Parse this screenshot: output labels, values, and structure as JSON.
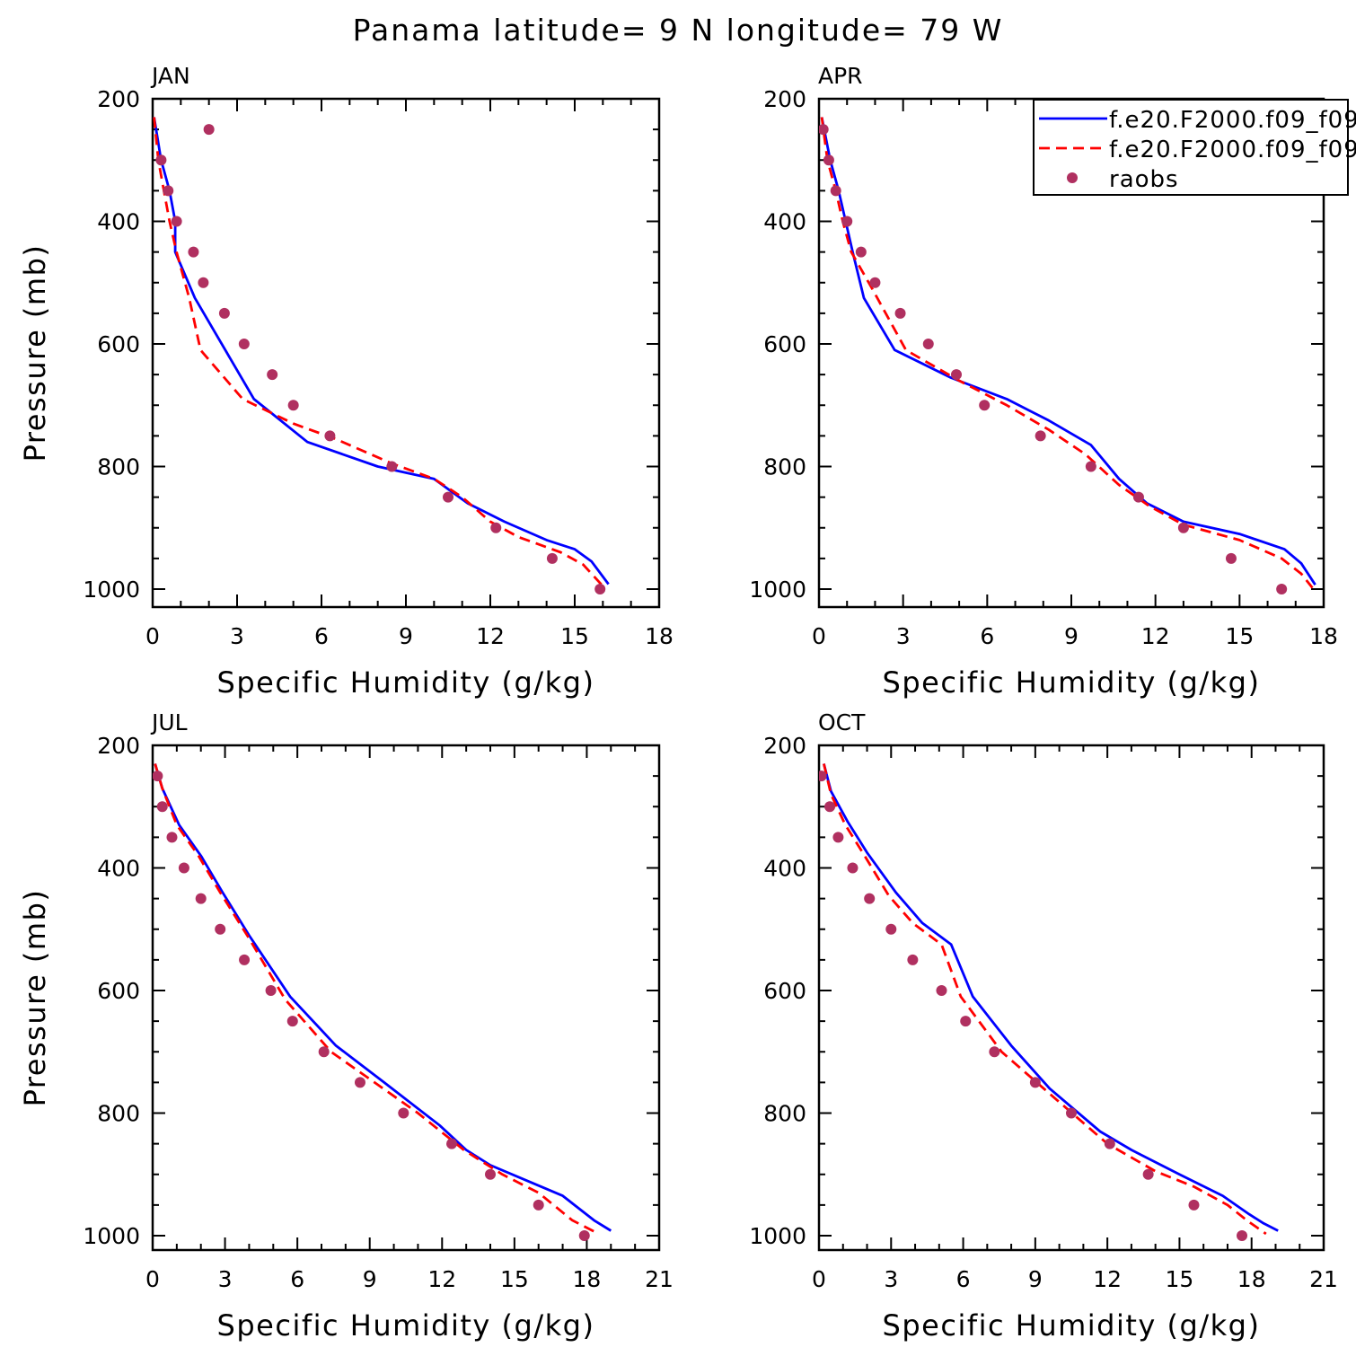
{
  "title": "Panama  latitude= 9 N longitude= 79 W",
  "legend": {
    "placement": "top-right of APR panel",
    "entries": [
      {
        "label": "f.e20.F2000.f09_f09",
        "style": "solid",
        "color": "#0000ff"
      },
      {
        "label": "f.e20.F2000.f09_f09",
        "style": "dashed",
        "color": "#ff0000"
      },
      {
        "label": "raobs",
        "style": "dot",
        "color": "#b03060"
      }
    ]
  },
  "colors": {
    "solid": "#0000ff",
    "dashed": "#ff0000",
    "raobs": "#b03060"
  },
  "chart_data": [
    {
      "type": "line",
      "month": "JAN",
      "xlabel": "Specific Humidity (g/kg)",
      "ylabel": "Pressure (mb)",
      "xlim": [
        0,
        18
      ],
      "ylim": [
        1025,
        200
      ],
      "xticks": [
        0,
        3,
        6,
        9,
        12,
        15,
        18
      ],
      "yticks": [
        200,
        400,
        600,
        800,
        1000
      ],
      "series": [
        {
          "style": "solid",
          "points": [
            [
              0.05,
              230
            ],
            [
              0.3,
              300
            ],
            [
              0.6,
              350
            ],
            [
              0.8,
              400
            ],
            [
              0.8,
              450
            ],
            [
              1.5,
              525
            ],
            [
              3.6,
              690
            ],
            [
              5.5,
              760
            ],
            [
              8,
              800
            ],
            [
              10,
              820
            ],
            [
              11.2,
              860
            ],
            [
              12.5,
              890
            ],
            [
              14,
              920
            ],
            [
              15,
              935
            ],
            [
              15.6,
              955
            ],
            [
              16.2,
              992
            ]
          ]
        },
        {
          "style": "dashed",
          "points": [
            [
              0.05,
              230
            ],
            [
              0.2,
              300
            ],
            [
              0.4,
              350
            ],
            [
              0.6,
              400
            ],
            [
              0.85,
              450
            ],
            [
              1.3,
              525
            ],
            [
              1.7,
              610
            ],
            [
              3.2,
              690
            ],
            [
              5,
              730
            ],
            [
              6.5,
              755
            ],
            [
              8.5,
              795
            ],
            [
              10,
              820
            ],
            [
              11,
              850
            ],
            [
              12,
              890
            ],
            [
              13,
              915
            ],
            [
              14.5,
              940
            ],
            [
              15.3,
              960
            ],
            [
              16,
              995
            ]
          ]
        },
        {
          "style": "dots",
          "points": [
            [
              2,
              250
            ],
            [
              0.3,
              300
            ],
            [
              0.55,
              350
            ],
            [
              0.85,
              400
            ],
            [
              1.45,
              450
            ],
            [
              1.8,
              500
            ],
            [
              2.55,
              550
            ],
            [
              3.25,
              600
            ],
            [
              4.25,
              650
            ],
            [
              5,
              700
            ],
            [
              6.3,
              750
            ],
            [
              8.5,
              800
            ],
            [
              10.5,
              850
            ],
            [
              12.2,
              900
            ],
            [
              14.2,
              950
            ],
            [
              15.9,
              1000
            ]
          ]
        }
      ]
    },
    {
      "type": "line",
      "month": "APR",
      "xlabel": "Specific Humidity (g/kg)",
      "ylabel": "",
      "xlim": [
        0,
        18
      ],
      "ylim": [
        1025,
        200
      ],
      "xticks": [
        0,
        3,
        6,
        9,
        12,
        15,
        18
      ],
      "yticks": [
        200,
        400,
        600,
        800,
        1000
      ],
      "series": [
        {
          "style": "solid",
          "points": [
            [
              0.1,
              230
            ],
            [
              0.4,
              300
            ],
            [
              0.7,
              350
            ],
            [
              0.95,
              400
            ],
            [
              1.2,
              450
            ],
            [
              1.6,
              525
            ],
            [
              2.7,
              610
            ],
            [
              4.7,
              655
            ],
            [
              6.7,
              690
            ],
            [
              8.2,
              725
            ],
            [
              9.7,
              765
            ],
            [
              10.7,
              820
            ],
            [
              11.7,
              860
            ],
            [
              13,
              890
            ],
            [
              15,
              910
            ],
            [
              16.6,
              935
            ],
            [
              17.2,
              958
            ],
            [
              17.7,
              993
            ]
          ]
        },
        {
          "style": "dashed",
          "points": [
            [
              0.1,
              230
            ],
            [
              0.3,
              300
            ],
            [
              0.6,
              350
            ],
            [
              0.85,
              400
            ],
            [
              1.15,
              450
            ],
            [
              1.9,
              510
            ],
            [
              3.1,
              610
            ],
            [
              5,
              660
            ],
            [
              6.7,
              700
            ],
            [
              8.2,
              740
            ],
            [
              9.5,
              780
            ],
            [
              10.7,
              830
            ],
            [
              11.8,
              865
            ],
            [
              13,
              895
            ],
            [
              15,
              920
            ],
            [
              16.5,
              950
            ],
            [
              17.2,
              975
            ],
            [
              17.6,
              998
            ]
          ]
        },
        {
          "style": "dots",
          "points": [
            [
              0.15,
              250
            ],
            [
              0.35,
              300
            ],
            [
              0.6,
              350
            ],
            [
              1,
              400
            ],
            [
              1.5,
              450
            ],
            [
              2,
              500
            ],
            [
              2.9,
              550
            ],
            [
              3.9,
              600
            ],
            [
              4.9,
              650
            ],
            [
              5.9,
              700
            ],
            [
              7.9,
              750
            ],
            [
              9.7,
              800
            ],
            [
              11.4,
              850
            ],
            [
              13,
              900
            ],
            [
              14.7,
              950
            ],
            [
              16.5,
              1000
            ]
          ]
        }
      ]
    },
    {
      "type": "line",
      "month": "JUL",
      "xlabel": "Specific Humidity (g/kg)",
      "ylabel": "Pressure (mb)",
      "xlim": [
        0,
        21
      ],
      "ylim": [
        1025,
        200
      ],
      "xticks": [
        0,
        3,
        6,
        9,
        12,
        15,
        18,
        21
      ],
      "yticks": [
        200,
        400,
        600,
        800,
        1000
      ],
      "series": [
        {
          "style": "solid",
          "points": [
            [
              0.1,
              230
            ],
            [
              0.4,
              270
            ],
            [
              1.1,
              330
            ],
            [
              2,
              380
            ],
            [
              2.9,
              440
            ],
            [
              4,
              510
            ],
            [
              5.7,
              610
            ],
            [
              7.6,
              690
            ],
            [
              9.6,
              750
            ],
            [
              11.9,
              820
            ],
            [
              13,
              860
            ],
            [
              14,
              885
            ],
            [
              15.5,
              910
            ],
            [
              17,
              935
            ],
            [
              18.3,
              975
            ],
            [
              19,
              992
            ]
          ]
        },
        {
          "style": "dashed",
          "points": [
            [
              0.1,
              230
            ],
            [
              0.4,
              270
            ],
            [
              1,
              330
            ],
            [
              1.9,
              380
            ],
            [
              2.8,
              440
            ],
            [
              4,
              515
            ],
            [
              5.5,
              615
            ],
            [
              7.4,
              700
            ],
            [
              9.2,
              750
            ],
            [
              11,
              800
            ],
            [
              12.9,
              860
            ],
            [
              14.5,
              900
            ],
            [
              16,
              930
            ],
            [
              17.4,
              975
            ],
            [
              18.5,
              997
            ]
          ]
        },
        {
          "style": "dots",
          "points": [
            [
              0.2,
              250
            ],
            [
              0.4,
              300
            ],
            [
              0.8,
              350
            ],
            [
              1.3,
              400
            ],
            [
              2,
              450
            ],
            [
              2.8,
              500
            ],
            [
              3.8,
              550
            ],
            [
              4.9,
              600
            ],
            [
              5.8,
              650
            ],
            [
              7.1,
              700
            ],
            [
              8.6,
              750
            ],
            [
              10.4,
              800
            ],
            [
              12.4,
              850
            ],
            [
              14,
              900
            ],
            [
              16,
              950
            ],
            [
              17.9,
              1000
            ]
          ]
        }
      ]
    },
    {
      "type": "line",
      "month": "OCT",
      "xlabel": "Specific Humidity (g/kg)",
      "ylabel": "",
      "xlim": [
        0,
        21
      ],
      "ylim": [
        1025,
        200
      ],
      "xticks": [
        0,
        3,
        6,
        9,
        12,
        15,
        18,
        21
      ],
      "yticks": [
        200,
        400,
        600,
        800,
        1000
      ],
      "series": [
        {
          "style": "solid",
          "points": [
            [
              0.2,
              230
            ],
            [
              0.5,
              275
            ],
            [
              1.2,
              325
            ],
            [
              2,
              375
            ],
            [
              3.2,
              440
            ],
            [
              4.3,
              490
            ],
            [
              5.5,
              525
            ],
            [
              6.4,
              610
            ],
            [
              8,
              690
            ],
            [
              9.6,
              760
            ],
            [
              11.7,
              830
            ],
            [
              13,
              860
            ],
            [
              15,
              900
            ],
            [
              16.8,
              935
            ],
            [
              17.9,
              965
            ],
            [
              18.5,
              980
            ],
            [
              19.1,
              992
            ]
          ]
        },
        {
          "style": "dashed",
          "points": [
            [
              0.2,
              230
            ],
            [
              0.5,
              280
            ],
            [
              1.1,
              330
            ],
            [
              1.9,
              380
            ],
            [
              2.9,
              445
            ],
            [
              3.9,
              490
            ],
            [
              5.1,
              525
            ],
            [
              5.9,
              610
            ],
            [
              7.6,
              700
            ],
            [
              9.5,
              765
            ],
            [
              12,
              850
            ],
            [
              14,
              895
            ],
            [
              15.6,
              920
            ],
            [
              17,
              950
            ],
            [
              17.8,
              975
            ],
            [
              18.6,
              997
            ]
          ]
        },
        {
          "style": "dots",
          "points": [
            [
              0.1,
              250
            ],
            [
              0.45,
              300
            ],
            [
              0.8,
              350
            ],
            [
              1.4,
              400
            ],
            [
              2.1,
              450
            ],
            [
              3,
              500
            ],
            [
              3.9,
              550
            ],
            [
              5.1,
              600
            ],
            [
              6.1,
              650
            ],
            [
              7.3,
              700
            ],
            [
              9,
              750
            ],
            [
              10.5,
              800
            ],
            [
              12.1,
              850
            ],
            [
              13.7,
              900
            ],
            [
              15.6,
              950
            ],
            [
              17.6,
              1000
            ]
          ]
        }
      ]
    }
  ]
}
